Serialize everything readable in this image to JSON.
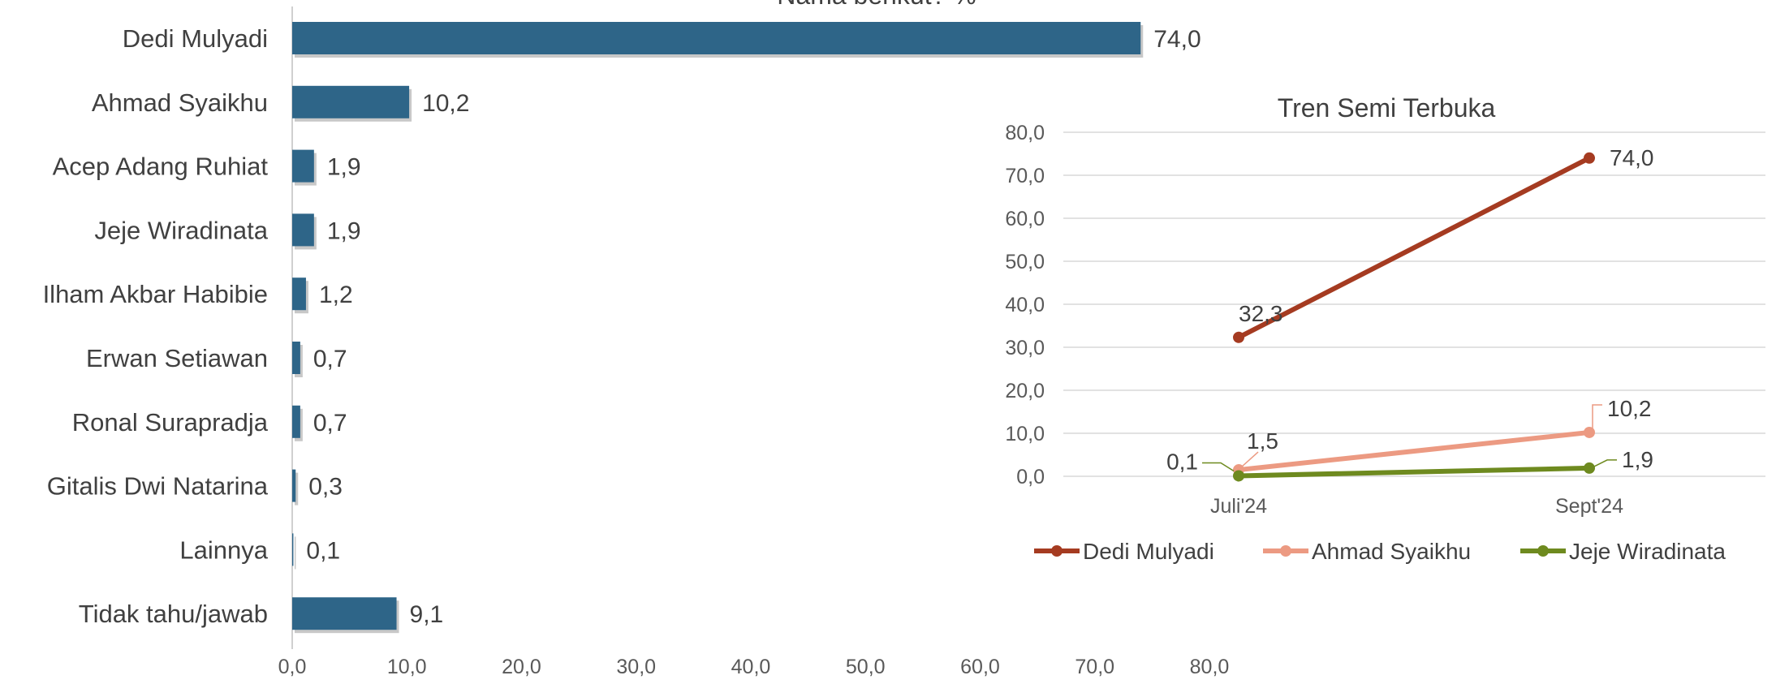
{
  "chart_data": [
    {
      "type": "bar",
      "orientation": "horizontal",
      "title": "Nama berikut? %",
      "categories": [
        "Dedi Mulyadi",
        "Ahmad Syaikhu",
        "Acep Adang Ruhiat",
        "Jeje Wiradinata",
        "Ilham Akbar Habibie",
        "Erwan Setiawan",
        "Ronal Surapradja",
        "Gitalis Dwi Natarina",
        "Lainnya",
        "Tidak tahu/jawab"
      ],
      "values": [
        74.0,
        10.2,
        1.9,
        1.9,
        1.2,
        0.7,
        0.7,
        0.3,
        0.1,
        9.1
      ],
      "value_labels": [
        "74,0",
        "10,2",
        "1,9",
        "1,9",
        "1,2",
        "0,7",
        "0,7",
        "0,3",
        "0,1",
        "9,1"
      ],
      "xlim": [
        0,
        80
      ],
      "xticks": [
        "0,0",
        "10,0",
        "20,0",
        "30,0",
        "40,0",
        "50,0",
        "60,0",
        "70,0",
        "80,0"
      ],
      "grid": false,
      "colors": {
        "bar": "#2e6588",
        "shadow": "#c8c8c8"
      }
    },
    {
      "type": "line",
      "title": "Tren Semi Terbuka",
      "categories": [
        "Juli'24",
        "Sept'24"
      ],
      "ylim": [
        0,
        80
      ],
      "yticks": [
        "0,0",
        "10,0",
        "20,0",
        "30,0",
        "40,0",
        "50,0",
        "60,0",
        "70,0",
        "80,0"
      ],
      "grid": true,
      "legend_position": "bottom",
      "series": [
        {
          "name": "Dedi Mulyadi",
          "values": [
            32.3,
            74.0
          ],
          "labels": [
            "32,3",
            "74,0"
          ],
          "color": "#a53b21"
        },
        {
          "name": "Ahmad Syaikhu",
          "values": [
            1.5,
            10.2
          ],
          "labels": [
            "1,5",
            "10,2"
          ],
          "color": "#ec9a82"
        },
        {
          "name": "Jeje Wiradinata",
          "values": [
            0.1,
            1.9
          ],
          "labels": [
            "0,1",
            "1,9"
          ],
          "color": "#6e8a1f"
        }
      ]
    }
  ]
}
